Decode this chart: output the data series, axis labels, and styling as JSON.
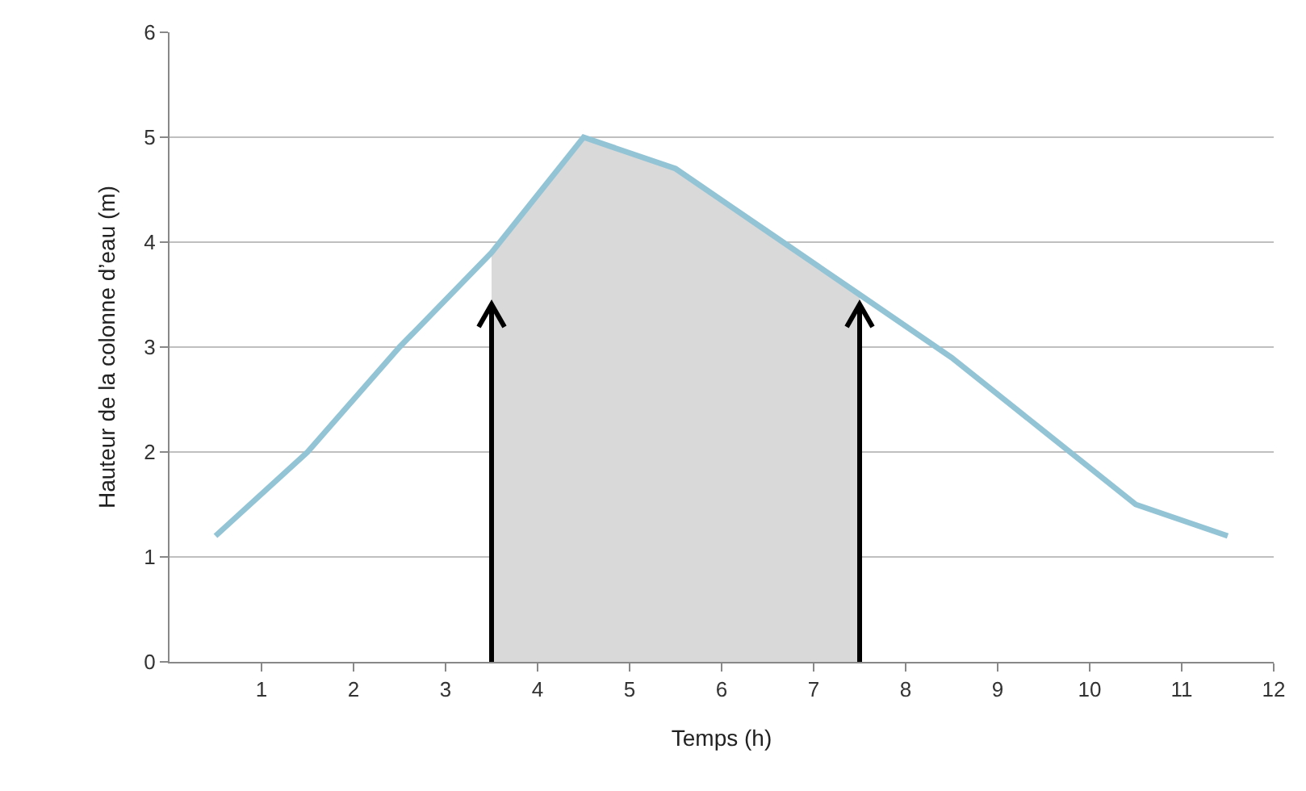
{
  "chart_data": {
    "type": "line",
    "xlabel": "Temps (h)",
    "ylabel": "Hauteur de la colonne d’eau (m)",
    "series": [
      {
        "type": "area",
        "color": "#d9d9d9",
        "x": [
          3.5,
          4.5,
          5.5,
          6.5,
          7.5
        ],
        "values": [
          3.9,
          5.0,
          4.7,
          4.1,
          3.5
        ]
      },
      {
        "color": "#93c4d6",
        "x": [
          0.5,
          1.5,
          2.5,
          3.5,
          4.5,
          5.5,
          6.5,
          7.5,
          8.5,
          9.5,
          10.5,
          11.5
        ],
        "values": [
          1.2,
          2.0,
          3.0,
          3.9,
          5.0,
          4.7,
          4.1,
          3.5,
          2.9,
          2.2,
          1.5,
          1.2
        ]
      }
    ],
    "xlim": [
      0,
      12
    ],
    "xticks": [
      1,
      2,
      3,
      4,
      5,
      6,
      7,
      8,
      9,
      10,
      11,
      12
    ],
    "ylim": [
      0,
      6
    ],
    "yticks": [
      0,
      1,
      2,
      3,
      4,
      5,
      6
    ],
    "grid": "y",
    "marker": "none",
    "line_style": "solid"
  }
}
